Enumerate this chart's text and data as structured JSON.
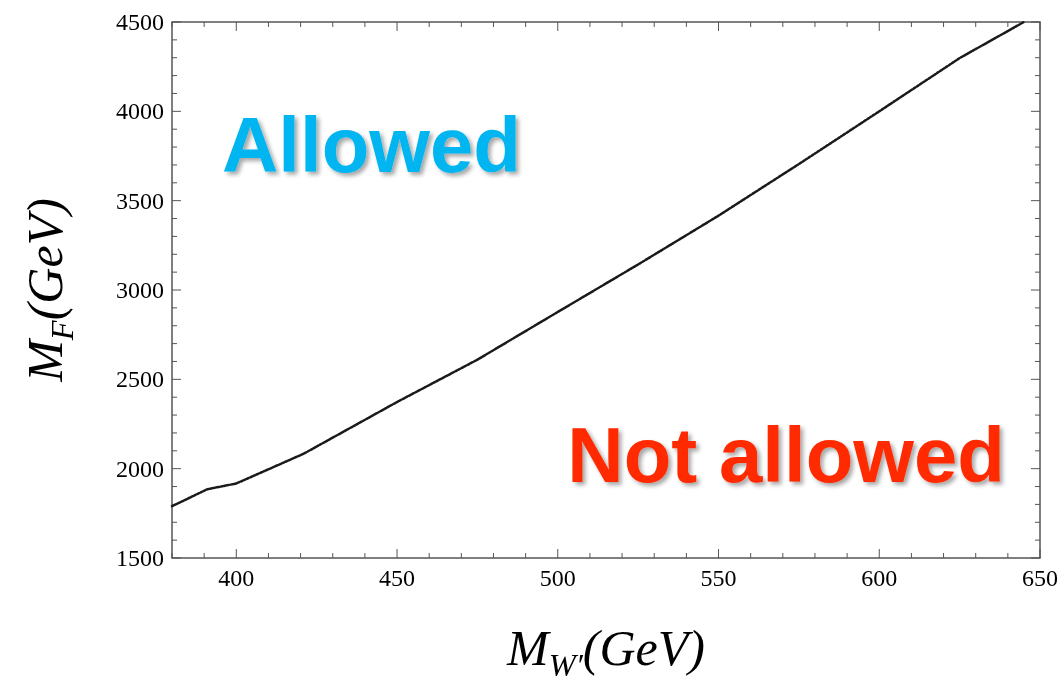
{
  "chart_data": {
    "type": "line",
    "xlabel": "M$_{W′}$(GeV)",
    "ylabel": "M$_{F}$(GeV)",
    "x": [
      380,
      391,
      400,
      421,
      450,
      475,
      500,
      525,
      550,
      575,
      600,
      625,
      645
    ],
    "series": [
      {
        "color": "#1a1a1a",
        "values": [
          1790,
          1885,
          1917,
          2084,
          2373,
          2610,
          2877,
          3143,
          3416,
          3705,
          4000,
          4298,
          4500
        ]
      }
    ],
    "xlim": [
      380,
      650
    ],
    "xticks": [
      {
        "value": 380,
        "label": null
      },
      {
        "value": 390,
        "label": null
      },
      400,
      {
        "value": 410,
        "label": null
      },
      {
        "value": 420,
        "label": null
      },
      {
        "value": 430,
        "label": null
      },
      {
        "value": 440,
        "label": null
      },
      450,
      {
        "value": 460,
        "label": null
      },
      {
        "value": 470,
        "label": null
      },
      {
        "value": 480,
        "label": null
      },
      {
        "value": 490,
        "label": null
      },
      500,
      {
        "value": 510,
        "label": null
      },
      {
        "value": 520,
        "label": null
      },
      {
        "value": 530,
        "label": null
      },
      {
        "value": 540,
        "label": null
      },
      550,
      {
        "value": 560,
        "label": null
      },
      {
        "value": 570,
        "label": null
      },
      {
        "value": 580,
        "label": null
      },
      {
        "value": 590,
        "label": null
      },
      600,
      {
        "value": 610,
        "label": null
      },
      {
        "value": 620,
        "label": null
      },
      {
        "value": 630,
        "label": null
      },
      {
        "value": 640,
        "label": null
      },
      650
    ],
    "ylim": [
      1500,
      4500
    ],
    "yticks": [
      1500,
      {
        "value": 1600,
        "label": null
      },
      {
        "value": 1700,
        "label": null
      },
      {
        "value": 1800,
        "label": null
      },
      {
        "value": 1900,
        "label": null
      },
      2000,
      {
        "value": 2100,
        "label": null
      },
      {
        "value": 2200,
        "label": null
      },
      {
        "value": 2300,
        "label": null
      },
      {
        "value": 2400,
        "label": null
      },
      2500,
      {
        "value": 2600,
        "label": null
      },
      {
        "value": 2700,
        "label": null
      },
      {
        "value": 2800,
        "label": null
      },
      {
        "value": 2900,
        "label": null
      },
      3000,
      {
        "value": 3100,
        "label": null
      },
      {
        "value": 3200,
        "label": null
      },
      {
        "value": 3300,
        "label": null
      },
      {
        "value": 3400,
        "label": null
      },
      3500,
      {
        "value": 3600,
        "label": null
      },
      {
        "value": 3700,
        "label": null
      },
      {
        "value": 3800,
        "label": null
      },
      {
        "value": 3900,
        "label": null
      },
      4000,
      {
        "value": 4100,
        "label": null
      },
      {
        "value": 4200,
        "label": null
      },
      {
        "value": 4300,
        "label": null
      },
      {
        "value": 4400,
        "label": null
      },
      4500
    ],
    "line_style": "dotted",
    "annotations": [
      "Allowed",
      "Not allowed"
    ]
  }
}
